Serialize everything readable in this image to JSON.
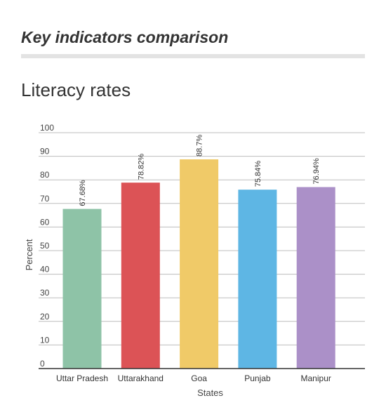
{
  "page": {
    "heading": "Key indicators comparison"
  },
  "chart_data": {
    "type": "bar",
    "title": "Literacy rates",
    "xlabel": "States",
    "ylabel": "Percent",
    "categories": [
      "Uttar Pradesh",
      "Uttarakhand",
      "Goa",
      "Punjab",
      "Manipur"
    ],
    "values": [
      67.68,
      78.82,
      88.7,
      75.84,
      76.94
    ],
    "value_labels": [
      "67.68%",
      "78.82%",
      "88.7%",
      "75.84%",
      "76.94%"
    ],
    "colors": [
      "#8ec3a7",
      "#dc5356",
      "#f0ca68",
      "#5eb6e4",
      "#ab90c8"
    ],
    "ylim": [
      0,
      100
    ],
    "yticks": [
      0,
      10,
      20,
      30,
      40,
      50,
      60,
      70,
      80,
      90,
      100
    ],
    "grid": true,
    "legend": "none"
  }
}
